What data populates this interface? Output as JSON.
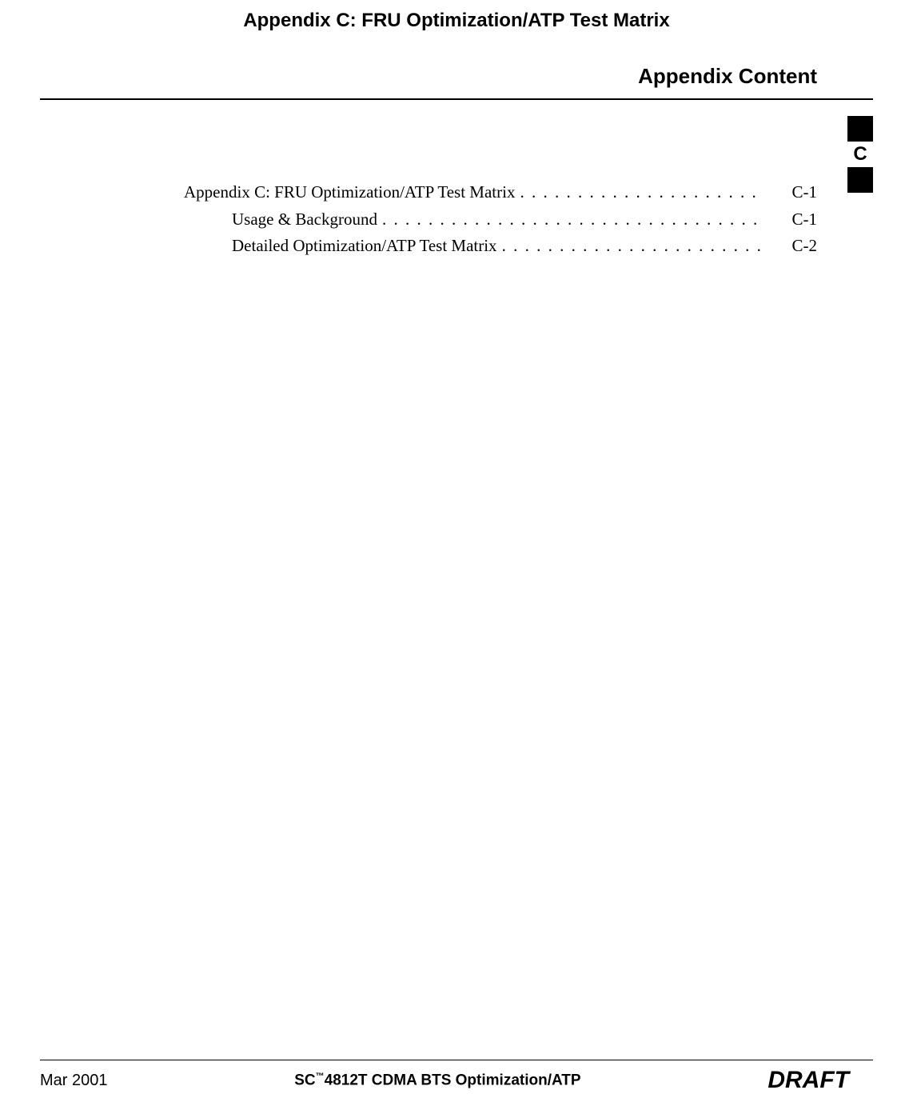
{
  "header": {
    "page_title": "Appendix C: FRU Optimization/ATP Test Matrix",
    "section_header": "Appendix Content"
  },
  "side_tab": {
    "letter": "C"
  },
  "toc": {
    "entries": [
      {
        "label": "Appendix C: FRU Optimization/ATP Test Matrix",
        "page": "C-1",
        "indent": 0
      },
      {
        "label": "Usage & Background",
        "page": "C-1",
        "indent": 1
      },
      {
        "label": "Detailed Optimization/ATP Test Matrix",
        "page": "C-2",
        "indent": 1
      }
    ]
  },
  "footer": {
    "left": "Mar 2001",
    "center_prefix": "SC",
    "center_tm": "™",
    "center_suffix": "4812T CDMA BTS Optimization/ATP",
    "right": "DRAFT"
  },
  "colors": {
    "text": "#000000",
    "background": "#ffffff",
    "rule": "#000000",
    "tab_block": "#000000"
  },
  "fonts": {
    "title_family": "Arial",
    "title_size_pt": 18,
    "body_family": "Times New Roman",
    "body_size_pt": 16,
    "footer_family": "Arial"
  }
}
